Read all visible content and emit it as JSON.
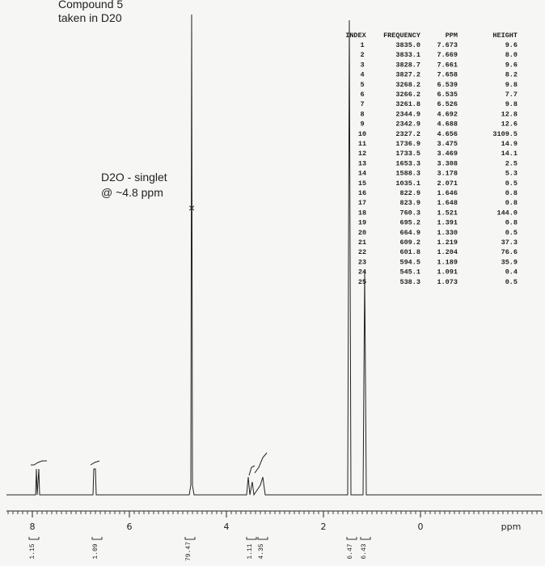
{
  "annotations": {
    "compound": "Compound 5",
    "solvent": "taken in D20",
    "note_line1": "D2O - singlet",
    "note_line2": "@ ~4.8 ppm"
  },
  "axis": {
    "xlim": [
      8.5,
      -2.5
    ],
    "ticks": [
      8,
      6,
      4,
      2,
      0
    ],
    "unit": "ppm"
  },
  "integrals": [
    "1.15",
    "1.09",
    "79.47",
    "1.11",
    "4.35",
    "6.47",
    "6.43"
  ],
  "peak_table": {
    "headers": [
      "INDEX",
      "FREQUENCY",
      "PPM",
      "HEIGHT"
    ],
    "rows": [
      [
        "1",
        "3835.0",
        "7.673",
        "9.6"
      ],
      [
        "2",
        "3833.1",
        "7.669",
        "8.0"
      ],
      [
        "3",
        "3828.7",
        "7.661",
        "9.6"
      ],
      [
        "4",
        "3827.2",
        "7.658",
        "8.2"
      ],
      [
        "5",
        "3268.2",
        "6.539",
        "9.8"
      ],
      [
        "6",
        "3266.2",
        "6.535",
        "7.7"
      ],
      [
        "7",
        "3261.8",
        "6.526",
        "9.8"
      ],
      [
        "8",
        "2344.9",
        "4.692",
        "12.8"
      ],
      [
        "9",
        "2342.9",
        "4.688",
        "12.6"
      ],
      [
        "10",
        "2327.2",
        "4.656",
        "3109.5"
      ],
      [
        "11",
        "1736.9",
        "3.475",
        "14.9"
      ],
      [
        "12",
        "1733.5",
        "3.469",
        "14.1"
      ],
      [
        "13",
        "1653.3",
        "3.308",
        "2.5"
      ],
      [
        "14",
        "1588.3",
        "3.178",
        "5.3"
      ],
      [
        "15",
        "1035.1",
        "2.071",
        "0.5"
      ],
      [
        "16",
        "822.9",
        "1.646",
        "0.8"
      ],
      [
        "17",
        "823.9",
        "1.648",
        "0.8"
      ],
      [
        "18",
        "760.3",
        "1.521",
        "144.0"
      ],
      [
        "19",
        "695.2",
        "1.391",
        "0.8"
      ],
      [
        "20",
        "664.9",
        "1.330",
        "0.5"
      ],
      [
        "21",
        "609.2",
        "1.219",
        "37.3"
      ],
      [
        "22",
        "601.8",
        "1.204",
        "76.6"
      ],
      [
        "23",
        "594.5",
        "1.189",
        "35.9"
      ],
      [
        "24",
        "545.1",
        "1.091",
        "0.4"
      ],
      [
        "25",
        "538.3",
        "1.073",
        "0.5"
      ]
    ]
  }
}
